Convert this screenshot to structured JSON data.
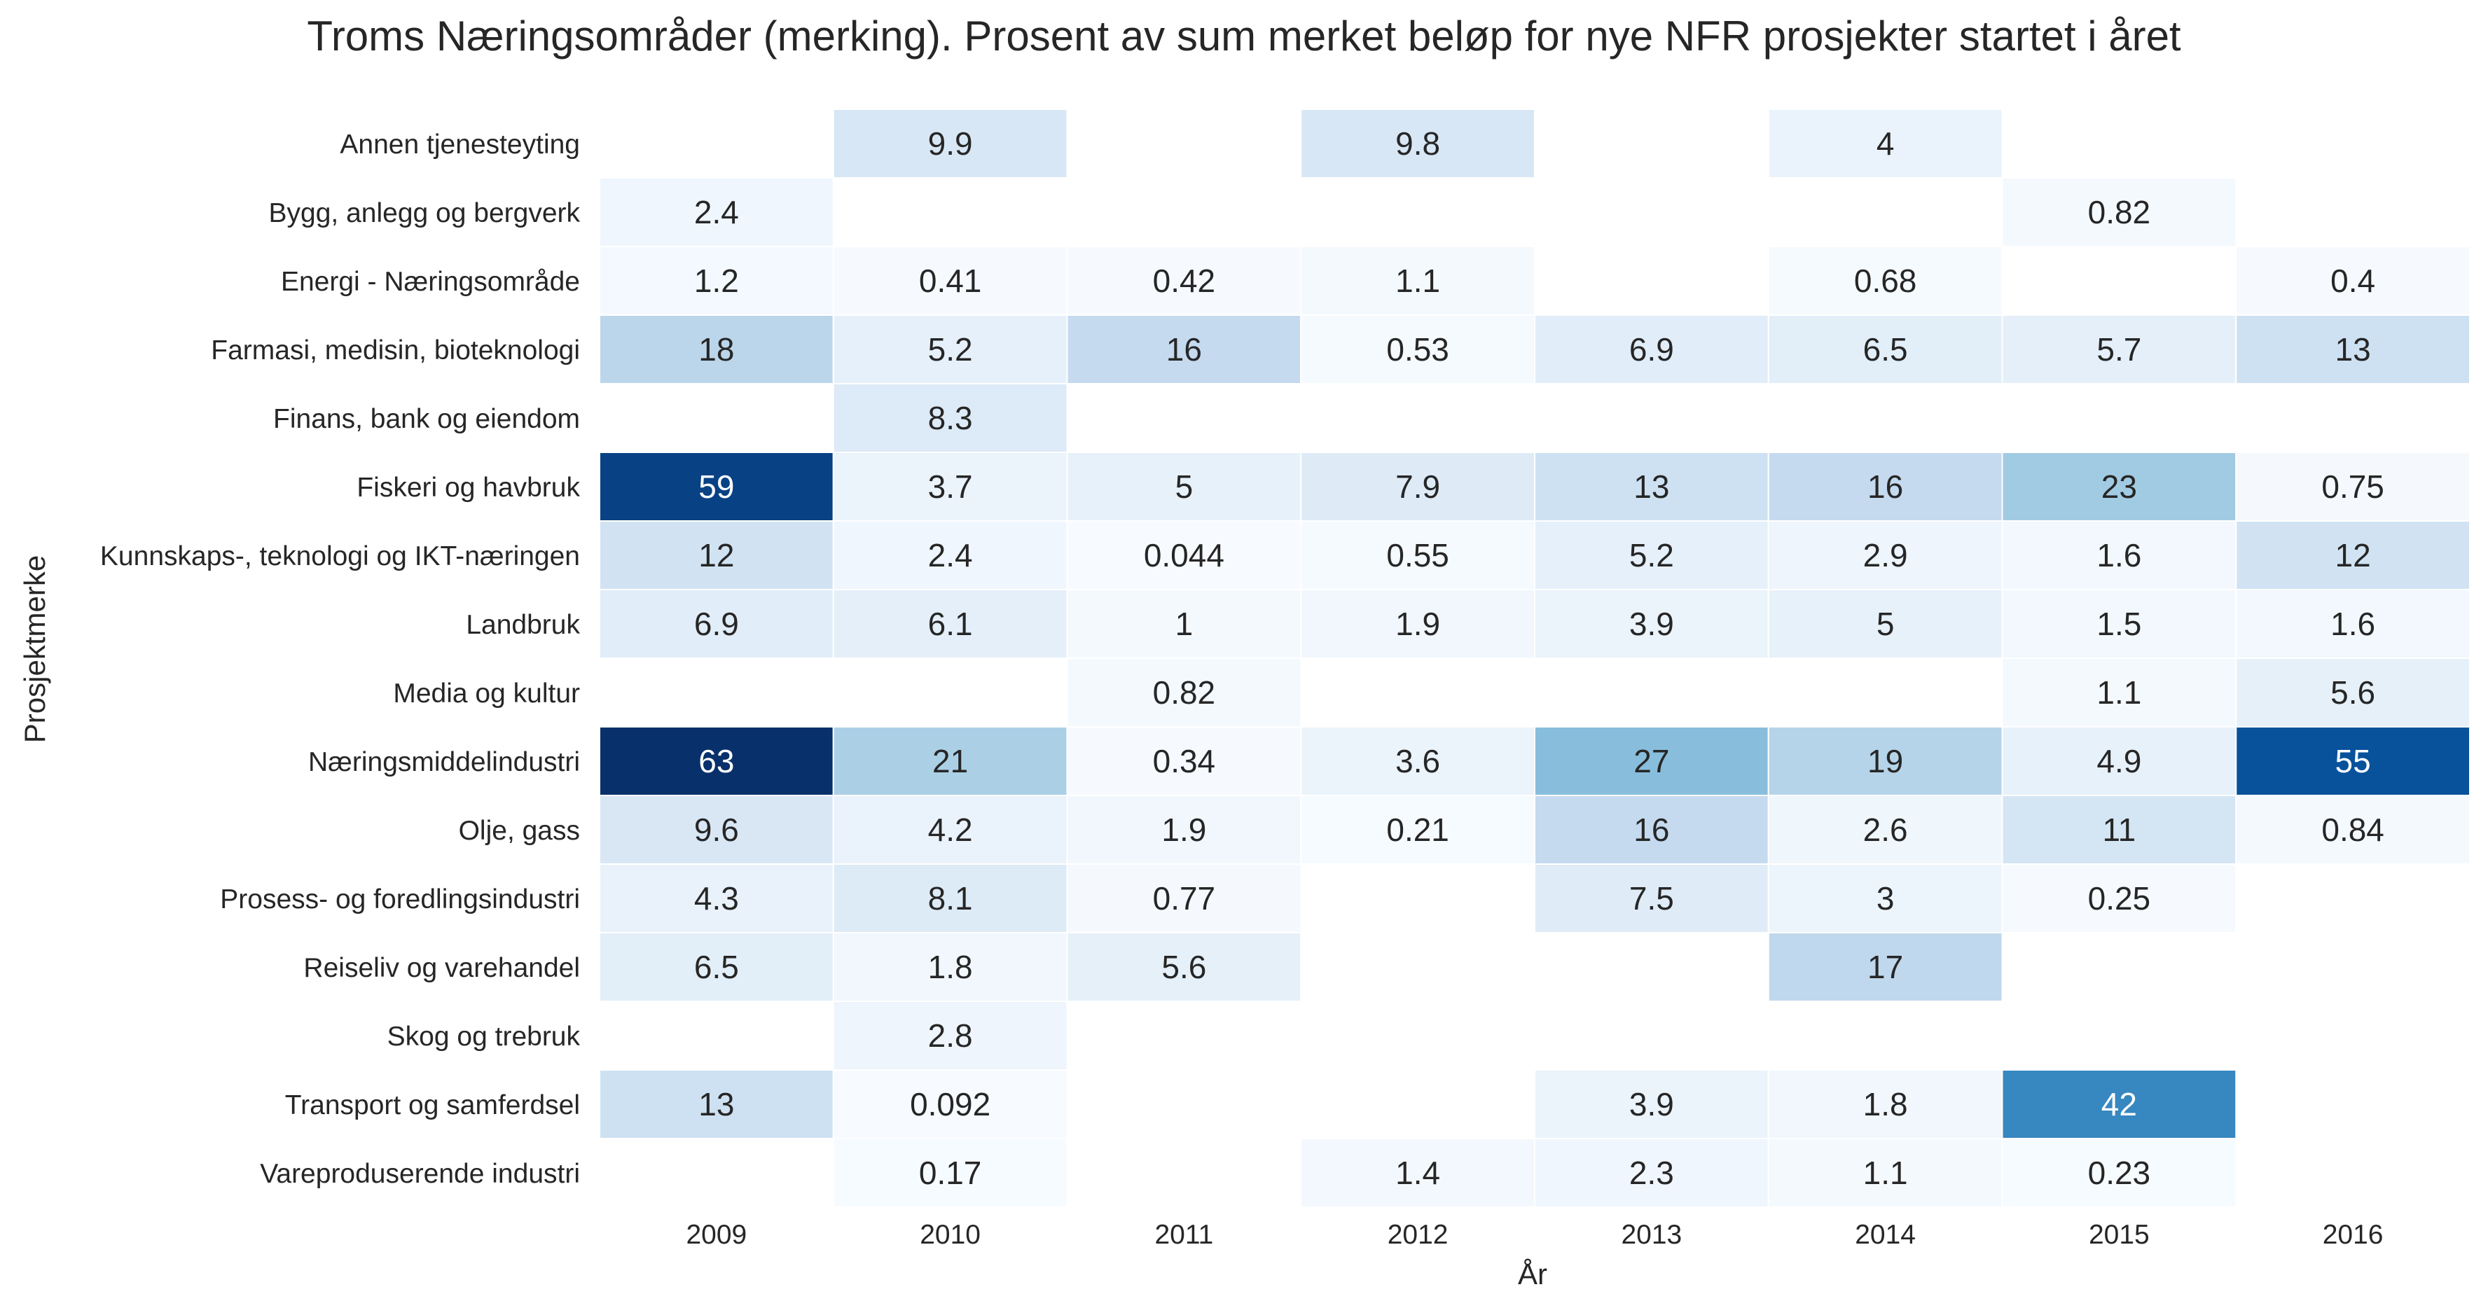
{
  "chart_data": {
    "type": "heatmap",
    "title": "Troms Næringsområder (merking). Prosent av sum merket beløp for nye NFR prosjekter startet i året",
    "xlabel": "År",
    "ylabel": "Prosjektmerke",
    "x": [
      "2009",
      "2010",
      "2011",
      "2012",
      "2013",
      "2014",
      "2015",
      "2016"
    ],
    "y": [
      "Annen tjenesteyting",
      "Bygg, anlegg og bergverk",
      "Energi - Næringsområde",
      "Farmasi, medisin, bioteknologi",
      "Finans, bank og eiendom",
      "Fiskeri og havbruk",
      "Kunnskaps-, teknologi og IKT-næringen",
      "Landbruk",
      "Media og kultur",
      "Næringsmiddelindustri",
      "Olje, gass",
      "Prosess- og foredlingsindustri",
      "Reiseliv og varehandel",
      "Skog og trebruk",
      "Transport og samferdsel",
      "Vareproduserende industri"
    ],
    "values": [
      [
        null,
        9.9,
        null,
        9.8,
        null,
        4,
        null,
        null
      ],
      [
        2.4,
        null,
        null,
        null,
        null,
        null,
        0.82,
        null
      ],
      [
        1.2,
        0.41,
        0.42,
        1.1,
        null,
        0.68,
        null,
        0.4
      ],
      [
        18,
        5.2,
        16,
        0.53,
        6.9,
        6.5,
        5.7,
        13
      ],
      [
        null,
        8.3,
        null,
        null,
        null,
        null,
        null,
        null
      ],
      [
        59,
        3.7,
        5,
        7.9,
        13,
        16,
        23,
        0.75
      ],
      [
        12,
        2.4,
        0.044,
        0.55,
        5.2,
        2.9,
        1.6,
        12
      ],
      [
        6.9,
        6.1,
        1,
        1.9,
        3.9,
        5,
        1.5,
        1.6
      ],
      [
        null,
        null,
        0.82,
        null,
        null,
        null,
        1.1,
        5.6
      ],
      [
        63,
        21,
        0.34,
        3.6,
        27,
        19,
        4.9,
        55
      ],
      [
        9.6,
        4.2,
        1.9,
        0.21,
        16,
        2.6,
        11,
        0.84
      ],
      [
        4.3,
        8.1,
        0.77,
        null,
        7.5,
        3,
        0.25,
        null
      ],
      [
        6.5,
        1.8,
        5.6,
        null,
        null,
        17,
        null,
        null
      ],
      [
        null,
        2.8,
        null,
        null,
        null,
        null,
        null,
        null
      ],
      [
        13,
        0.092,
        null,
        null,
        3.9,
        1.8,
        42,
        null
      ],
      [
        null,
        0.17,
        null,
        1.4,
        2.3,
        1.1,
        0.23,
        null
      ]
    ],
    "colormap": "Blues",
    "vmin": 0,
    "vmax": 63,
    "grid": false,
    "colorbar": false
  },
  "colors": {
    "background": "#ffffff",
    "text": "#262626",
    "cell_separator": "#ffffff",
    "label_dark": "#262626",
    "label_light": "#ffffff"
  }
}
